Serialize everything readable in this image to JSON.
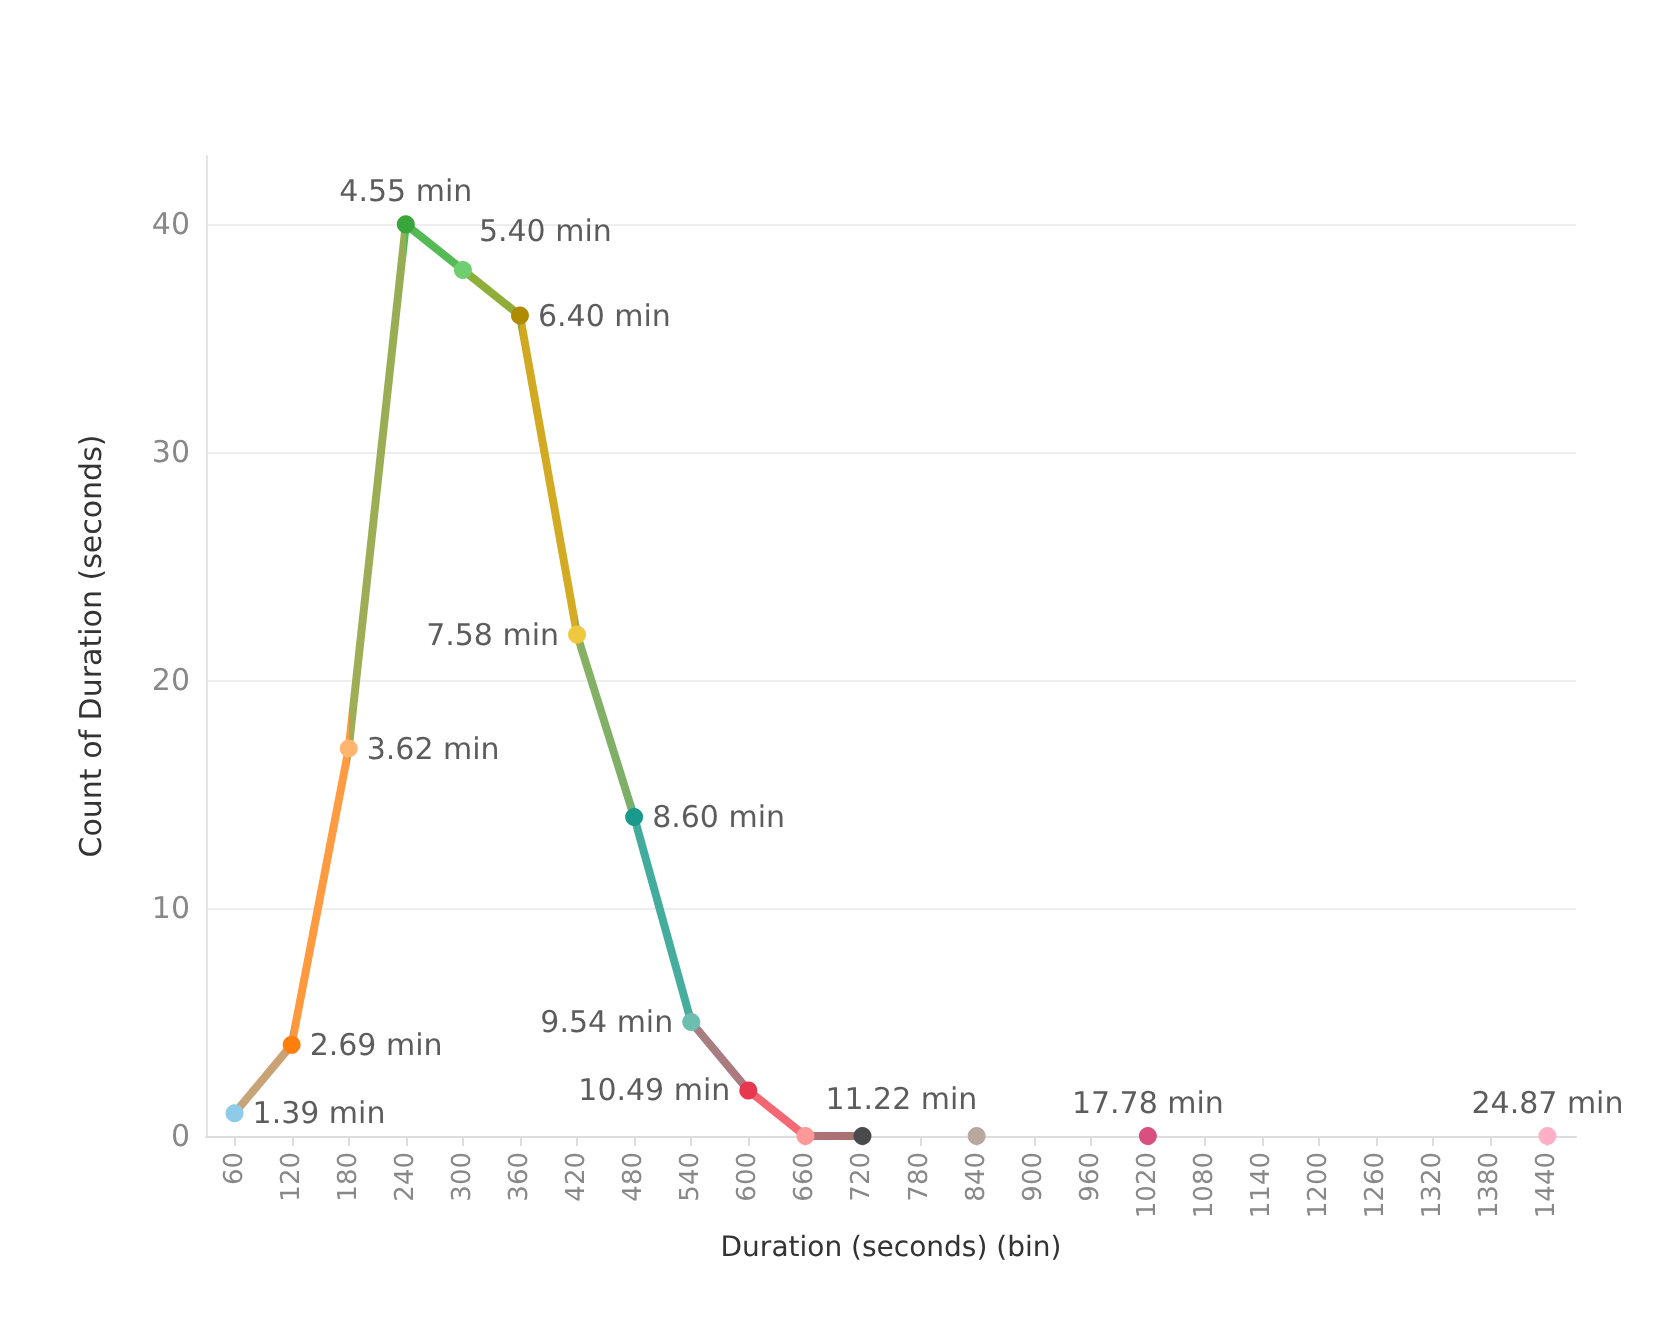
{
  "chart_data": {
    "type": "line",
    "xlabel": "Duration (seconds) (bin)",
    "ylabel": "Count of Duration (seconds)",
    "categories": [
      "60",
      "120",
      "180",
      "240",
      "300",
      "360",
      "420",
      "480",
      "540",
      "600",
      "660",
      "720",
      "780",
      "840",
      "900",
      "960",
      "1020",
      "1080",
      "1140",
      "1200",
      "1260",
      "1320",
      "1380",
      "1440"
    ],
    "values": [
      1,
      4,
      17,
      40,
      38,
      36,
      22,
      14,
      5,
      2,
      0,
      0,
      null,
      0,
      null,
      null,
      0,
      null,
      null,
      null,
      null,
      null,
      null,
      0
    ],
    "colors": [
      "#8ecbe8",
      "#ff7f0e",
      "#ffb570",
      "#3aa53a",
      "#6fcf6f",
      "#b08a00",
      "#f0c840",
      "#1a9a8a",
      "#6cbfb0",
      "#e8384f",
      "#ff9999",
      "#4a4a4a",
      null,
      "#b8a8a0",
      null,
      null,
      "#d85080",
      null,
      null,
      null,
      null,
      null,
      null,
      "#ffb0c8"
    ],
    "annotations": [
      {
        "text": "1.39 min",
        "x": "60",
        "y": 1
      },
      {
        "text": "2.69 min",
        "x": "120",
        "y": 4
      },
      {
        "text": "3.62 min",
        "x": "180",
        "y": 17
      },
      {
        "text": "4.55 min",
        "x": "240",
        "y": 40
      },
      {
        "text": "5.40 min",
        "x": "300",
        "y": 38
      },
      {
        "text": "6.40 min",
        "x": "360",
        "y": 36
      },
      {
        "text": "7.58 min",
        "x": "420",
        "y": 22
      },
      {
        "text": "8.60 min",
        "x": "480",
        "y": 14
      },
      {
        "text": "9.54 min",
        "x": "540",
        "y": 5
      },
      {
        "text": "10.49 min",
        "x": "600",
        "y": 2
      },
      {
        "text": "11.22 min",
        "x": "660",
        "y": 0
      },
      {
        "text": "17.78 min",
        "x": "1020",
        "y": 0
      },
      {
        "text": "24.87 min",
        "x": "1440",
        "y": 0
      }
    ],
    "ylim": [
      0,
      43
    ],
    "yticks": [
      0,
      10,
      20,
      30,
      40
    ],
    "grid": "y",
    "marker": "circle",
    "line_style": "solid"
  }
}
